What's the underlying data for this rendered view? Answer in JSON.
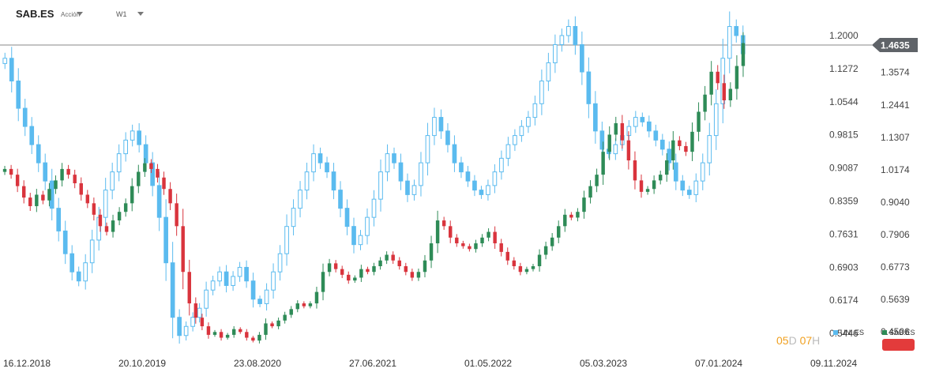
{
  "header": {
    "symbol": "SAB.ES",
    "type": "Acción",
    "timeframe": "W1"
  },
  "countdown": {
    "days": "05",
    "days_unit": "D",
    "hours": "07",
    "hours_unit": "H"
  },
  "chart_data": {
    "type": "candlestick",
    "title": "",
    "x_labels": [
      "16.12.2018",
      "20.10.2019",
      "23.08.2020",
      "27.06.2021",
      "01.05.2022",
      "05.03.2023",
      "07.01.2024",
      "09.11.2024"
    ],
    "left_axis": {
      "ticks": [
        "1.2000",
        "1.1272",
        "1.0544",
        "0.9815",
        "0.9087",
        "0.8359",
        "0.7631",
        "0.6903",
        "0.6174",
        "0.5446"
      ],
      "range": [
        0.51,
        1.24
      ]
    },
    "right_axis": {
      "ticks": [
        "1.3574",
        "1.2441",
        "1.1307",
        "1.0174",
        "0.9040",
        "0.7906",
        "0.6773",
        "0.5639",
        "0.4506"
      ],
      "range": [
        0.39,
        1.55
      ],
      "current_price": "1.4635"
    },
    "grid": false,
    "legend_position": "bottom-right",
    "colors": {
      "up": "#2e8b57",
      "down": "#d9343d",
      "secondary": "#5bbbef",
      "price_line": "#888888",
      "price_tag": "#5f6368"
    },
    "series": [
      {
        "name": "SAB.ES",
        "axis": "right",
        "style": "candles",
        "closes": [
          1.02,
          1.0,
          0.96,
          0.92,
          0.89,
          0.93,
          0.91,
          0.95,
          0.98,
          1.02,
          1.0,
          0.97,
          0.93,
          0.9,
          0.86,
          0.82,
          0.8,
          0.84,
          0.87,
          0.9,
          0.96,
          1.01,
          1.04,
          1.02,
          0.99,
          0.95,
          0.9,
          0.82,
          0.66,
          0.55,
          0.5,
          0.47,
          0.44,
          0.45,
          0.43,
          0.44,
          0.46,
          0.45,
          0.43,
          0.42,
          0.44,
          0.48,
          0.47,
          0.49,
          0.51,
          0.53,
          0.55,
          0.54,
          0.55,
          0.59,
          0.66,
          0.69,
          0.67,
          0.65,
          0.63,
          0.64,
          0.67,
          0.66,
          0.68,
          0.7,
          0.72,
          0.7,
          0.68,
          0.66,
          0.64,
          0.66,
          0.7,
          0.76,
          0.84,
          0.82,
          0.78,
          0.76,
          0.75,
          0.74,
          0.76,
          0.78,
          0.8,
          0.76,
          0.73,
          0.7,
          0.68,
          0.66,
          0.67,
          0.68,
          0.72,
          0.75,
          0.78,
          0.82,
          0.86,
          0.85,
          0.87,
          0.92,
          0.96,
          1.0,
          1.08,
          1.14,
          1.18,
          1.12,
          1.05,
          0.98,
          0.94,
          0.95,
          0.98,
          1.0,
          1.05,
          1.12,
          1.1,
          1.08,
          1.15,
          1.22,
          1.28,
          1.36,
          1.32,
          1.26,
          1.3,
          1.38,
          1.46
        ]
      },
      {
        "name": "UNI.ES",
        "axis": "left",
        "style": "outline-candles",
        "closes": [
          1.15,
          1.1,
          1.04,
          1.0,
          0.96,
          0.92,
          0.88,
          0.82,
          0.77,
          0.72,
          0.68,
          0.66,
          0.7,
          0.75,
          0.8,
          0.86,
          0.9,
          0.94,
          0.97,
          0.99,
          0.96,
          0.92,
          0.87,
          0.8,
          0.7,
          0.58,
          0.54,
          0.56,
          0.58,
          0.6,
          0.64,
          0.66,
          0.68,
          0.65,
          0.67,
          0.69,
          0.66,
          0.62,
          0.61,
          0.64,
          0.68,
          0.72,
          0.78,
          0.82,
          0.86,
          0.9,
          0.94,
          0.92,
          0.9,
          0.86,
          0.82,
          0.78,
          0.74,
          0.76,
          0.8,
          0.84,
          0.9,
          0.94,
          0.92,
          0.88,
          0.85,
          0.87,
          0.92,
          0.98,
          1.02,
          0.99,
          0.96,
          0.92,
          0.9,
          0.88,
          0.86,
          0.85,
          0.87,
          0.9,
          0.93,
          0.96,
          0.98,
          1.0,
          1.02,
          1.05,
          1.1,
          1.14,
          1.18,
          1.2,
          1.22,
          1.18,
          1.12,
          1.05,
          0.99,
          0.95,
          0.94,
          0.96,
          0.98,
          1.0,
          1.02,
          1.01,
          0.99,
          0.97,
          0.95,
          0.92,
          0.88,
          0.86,
          0.85,
          0.88,
          0.92,
          0.98,
          1.05,
          1.15,
          1.22,
          1.2,
          1.16
        ]
      }
    ]
  }
}
